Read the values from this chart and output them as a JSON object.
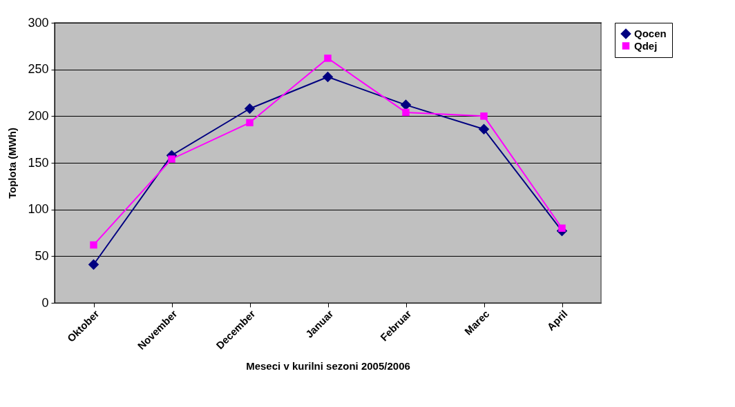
{
  "chart_data": {
    "type": "line",
    "xlabel": "Meseci v kurilni sezoni 2005/2006",
    "ylabel": "Toplota (MWh)",
    "categories": [
      "Oktober",
      "November",
      "December",
      "Januar",
      "Februar",
      "Marec",
      "April"
    ],
    "series": [
      {
        "name": "Qocen",
        "color": "#000080",
        "marker": "diamond",
        "values": [
          41,
          158,
          208,
          242,
          212,
          186,
          77
        ]
      },
      {
        "name": "Qdej",
        "color": "#ff00ff",
        "marker": "square",
        "values": [
          62,
          154,
          193,
          262,
          204,
          200,
          80
        ]
      }
    ],
    "ylim": [
      0,
      300
    ],
    "yticks": [
      0,
      50,
      100,
      150,
      200,
      250,
      300
    ],
    "grid": "y",
    "legend": "right"
  }
}
